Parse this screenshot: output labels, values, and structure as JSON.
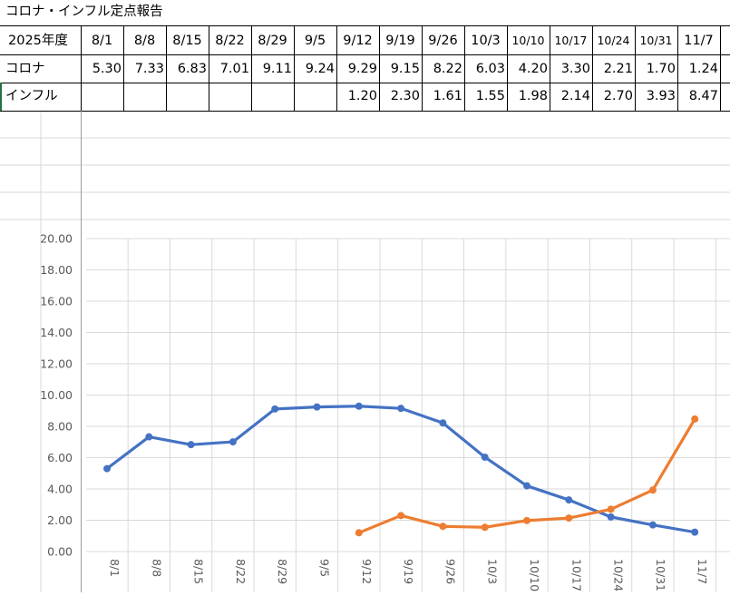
{
  "sheet": {
    "title": "コロナ・インフル定点報告",
    "header_label": "2025年度",
    "row1_label": "コロナ",
    "row2_label": "インフル",
    "dates": [
      "8/1",
      "8/8",
      "8/15",
      "8/22",
      "8/29",
      "9/5",
      "9/12",
      "9/19",
      "9/26",
      "10/3",
      "10/10",
      "10/17",
      "10/24",
      "10/31",
      "11/7"
    ],
    "corona_values": [
      "5.30",
      "7.33",
      "6.83",
      "7.01",
      "9.11",
      "9.24",
      "9.29",
      "9.15",
      "8.22",
      "6.03",
      "4.20",
      "3.30",
      "2.21",
      "1.70",
      "1.24"
    ],
    "flu_values": [
      "",
      "",
      "",
      "",
      "",
      "",
      "1.20",
      "2.30",
      "1.61",
      "1.55",
      "1.98",
      "2.14",
      "2.70",
      "3.93",
      "8.47"
    ]
  },
  "chart_data": {
    "type": "line",
    "categories": [
      "8/1",
      "8/8",
      "8/15",
      "8/22",
      "8/29",
      "9/5",
      "9/12",
      "9/19",
      "9/26",
      "10/3",
      "10/10",
      "10/17",
      "10/24",
      "10/31",
      "11/7"
    ],
    "series": [
      {
        "values": [
          5.3,
          7.33,
          6.83,
          7.01,
          9.11,
          9.24,
          9.29,
          9.15,
          8.22,
          6.03,
          4.2,
          3.3,
          2.21,
          1.7,
          1.24
        ],
        "color": "#4472C4"
      },
      {
        "values": [
          null,
          null,
          null,
          null,
          null,
          null,
          1.2,
          2.3,
          1.61,
          1.55,
          1.98,
          2.14,
          2.7,
          3.93,
          8.47
        ],
        "color": "#ED7D31"
      }
    ],
    "y_ticks": [
      "0.00",
      "2.00",
      "4.00",
      "6.00",
      "8.00",
      "10.00",
      "12.00",
      "14.00",
      "16.00",
      "18.00",
      "20.00"
    ],
    "ylim": [
      0,
      20
    ],
    "grid": true,
    "legend": "none"
  }
}
